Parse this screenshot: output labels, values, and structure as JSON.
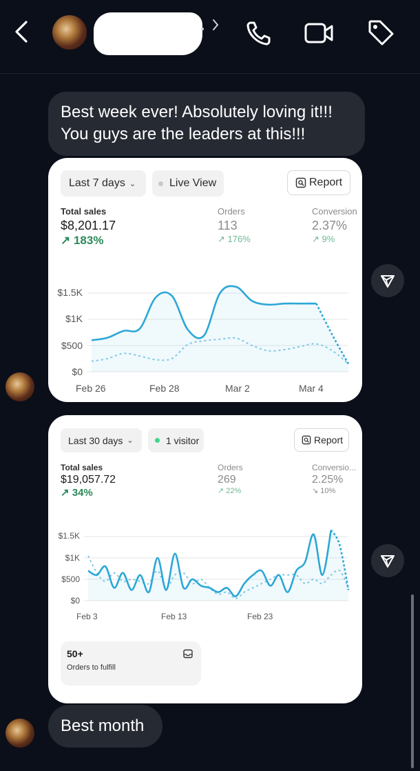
{
  "messages": {
    "first_text": "Best week ever! Absolutely loving it!!!\nYou guys are the leaders at this!!!",
    "last_text": "Best month"
  },
  "colors": {
    "background": "#0b0f19",
    "bubble": "#262a33",
    "chart_line": "#2ba7d6",
    "positive_change": "#2c8a5b"
  },
  "card_week": {
    "range_label": "Last 7 days",
    "live_label": "Live View",
    "report_label": "Report",
    "metrics": {
      "total_sales_label": "Total sales",
      "total_sales_value": "$8,201.17",
      "total_sales_change": "183%",
      "orders_label": "Orders",
      "orders_value": "113",
      "orders_change": "176%",
      "conversion_label": "Conversion",
      "conversion_value": "2.37%",
      "conversion_change": "9%"
    }
  },
  "card_month": {
    "range_label": "Last 30 days",
    "visitor_label": "1 visitor",
    "report_label": "Report",
    "metrics": {
      "total_sales_label": "Total sales",
      "total_sales_value": "$19,057.72",
      "total_sales_change": "34%",
      "orders_label": "Orders",
      "orders_value": "269",
      "orders_change": "22%",
      "conversion_label": "Conversio...",
      "conversion_value": "2.25%",
      "conversion_change": "10%"
    },
    "fulfill_count": "50+",
    "fulfill_label": "Orders to fulfill"
  },
  "chart_data": [
    {
      "type": "line",
      "y_ticks": [
        "$1.5K",
        "$1K",
        "$500",
        "$0"
      ],
      "x_ticks": [
        "Feb 26",
        "Feb 28",
        "Mar 2",
        "Mar 4"
      ],
      "ylim": [
        0,
        1500
      ],
      "grid": true,
      "x": [
        0,
        0.5,
        1,
        1.5,
        2,
        2.5,
        3,
        3.5,
        4,
        4.5,
        5,
        5.5,
        6,
        6.5,
        7,
        7.5,
        8
      ],
      "series": [
        {
          "values": [
            600,
            650,
            780,
            820,
            1420,
            1450,
            800,
            690,
            1500,
            1620,
            1350,
            1280,
            1300,
            1300,
            1300,
            700,
            150
          ]
        },
        {
          "values": [
            200,
            250,
            350,
            300,
            230,
            250,
            520,
            590,
            620,
            640,
            500,
            400,
            420,
            480,
            530,
            400,
            150
          ]
        }
      ]
    },
    {
      "type": "line",
      "y_ticks": [
        "$1.5K",
        "$1K",
        "$500",
        "$0"
      ],
      "x_ticks": [
        "Feb 3",
        "Feb 13",
        "Feb 23"
      ],
      "ylim": [
        0,
        1500
      ],
      "grid": true,
      "x": [
        0,
        1,
        2,
        3,
        4,
        5,
        6,
        7,
        8,
        9,
        10,
        11,
        12,
        13,
        14,
        15,
        16,
        17,
        18,
        19,
        20,
        21,
        22,
        23,
        24,
        25,
        26,
        27,
        28,
        29,
        30
      ],
      "series": [
        {
          "values": [
            700,
            600,
            800,
            300,
            650,
            250,
            600,
            200,
            1000,
            250,
            1100,
            300,
            500,
            350,
            300,
            200,
            300,
            100,
            400,
            600,
            700,
            350,
            600,
            200,
            700,
            900,
            1550,
            600,
            1650,
            1300,
            250
          ]
        },
        {
          "values": [
            1050,
            650,
            450,
            650,
            450,
            500,
            450,
            400,
            700,
            300,
            600,
            650,
            400,
            500,
            300,
            150,
            200,
            50,
            200,
            300,
            400,
            500,
            600,
            600,
            600,
            400,
            500,
            400,
            600,
            700,
            300
          ]
        }
      ]
    }
  ]
}
